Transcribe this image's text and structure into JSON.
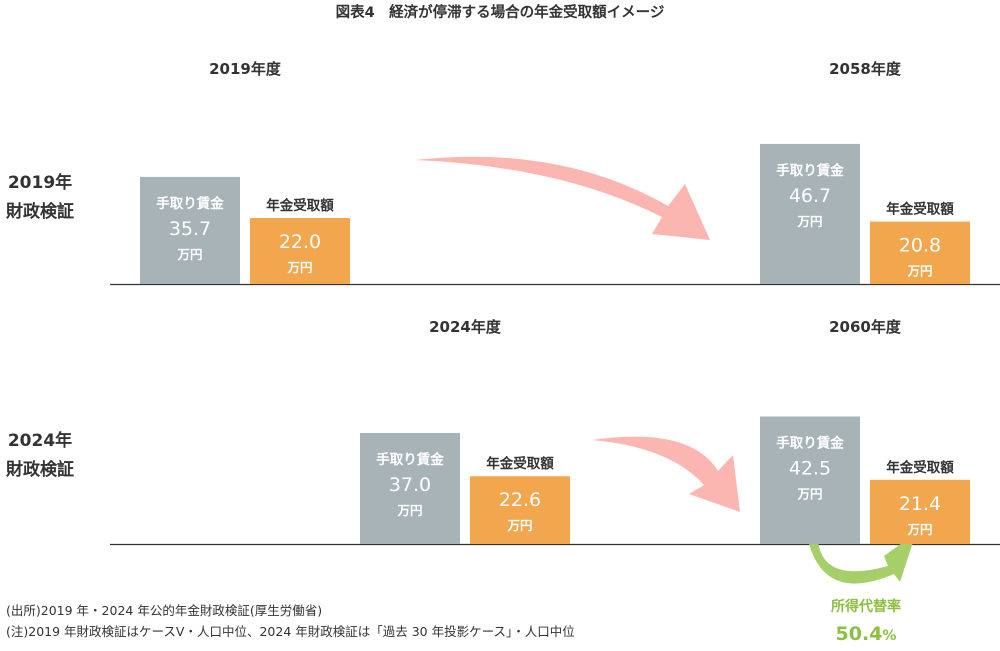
{
  "chart_data": {
    "type": "bar",
    "title": "図表4　経済が停滞する場合の年金受取額イメージ",
    "unit": "万円",
    "colors": {
      "take_home": "#a8b3b8",
      "pension": "#f2a64e",
      "arrow": "#fbb6b2",
      "ratio": "#a6cf6a",
      "ratio_text": "#8dbf42",
      "axis": "#333333"
    },
    "series": [
      {
        "name": "手取り賃金"
      },
      {
        "name": "年金受取額"
      }
    ],
    "panels": [
      {
        "row_label": [
          "2019年",
          "財政検証"
        ],
        "groups": [
          {
            "year": "2019年度",
            "take_home": {
              "label": "手取り賃金",
              "value": 35.7
            },
            "pension": {
              "label": "年金受取額",
              "value": 22.0
            }
          },
          {
            "year": "2058年度",
            "take_home": {
              "label": "手取り賃金",
              "value": 46.7
            },
            "pension": {
              "label": "年金受取額",
              "value": 20.8
            }
          }
        ]
      },
      {
        "row_label": [
          "2024年",
          "財政検証"
        ],
        "groups": [
          {
            "year": "2024年度",
            "take_home": {
              "label": "手取り賃金",
              "value": 37.0
            },
            "pension": {
              "label": "年金受取額",
              "value": 22.6
            }
          },
          {
            "year": "2060年度",
            "take_home": {
              "label": "手取り賃金",
              "value": 42.5
            },
            "pension": {
              "label": "年金受取額",
              "value": 21.4
            }
          }
        ]
      }
    ],
    "replacement_rate": {
      "label": "所得代替率",
      "value": "50.4",
      "unit": "%"
    }
  },
  "notes": [
    "(出所)2019 年・2024 年公的年金財政検証(厚生労働省)",
    "(注)2019 年財政検証はケースⅤ・人口中位、2024 年財政検証は「過去 30 年投影ケース」・人口中位"
  ]
}
